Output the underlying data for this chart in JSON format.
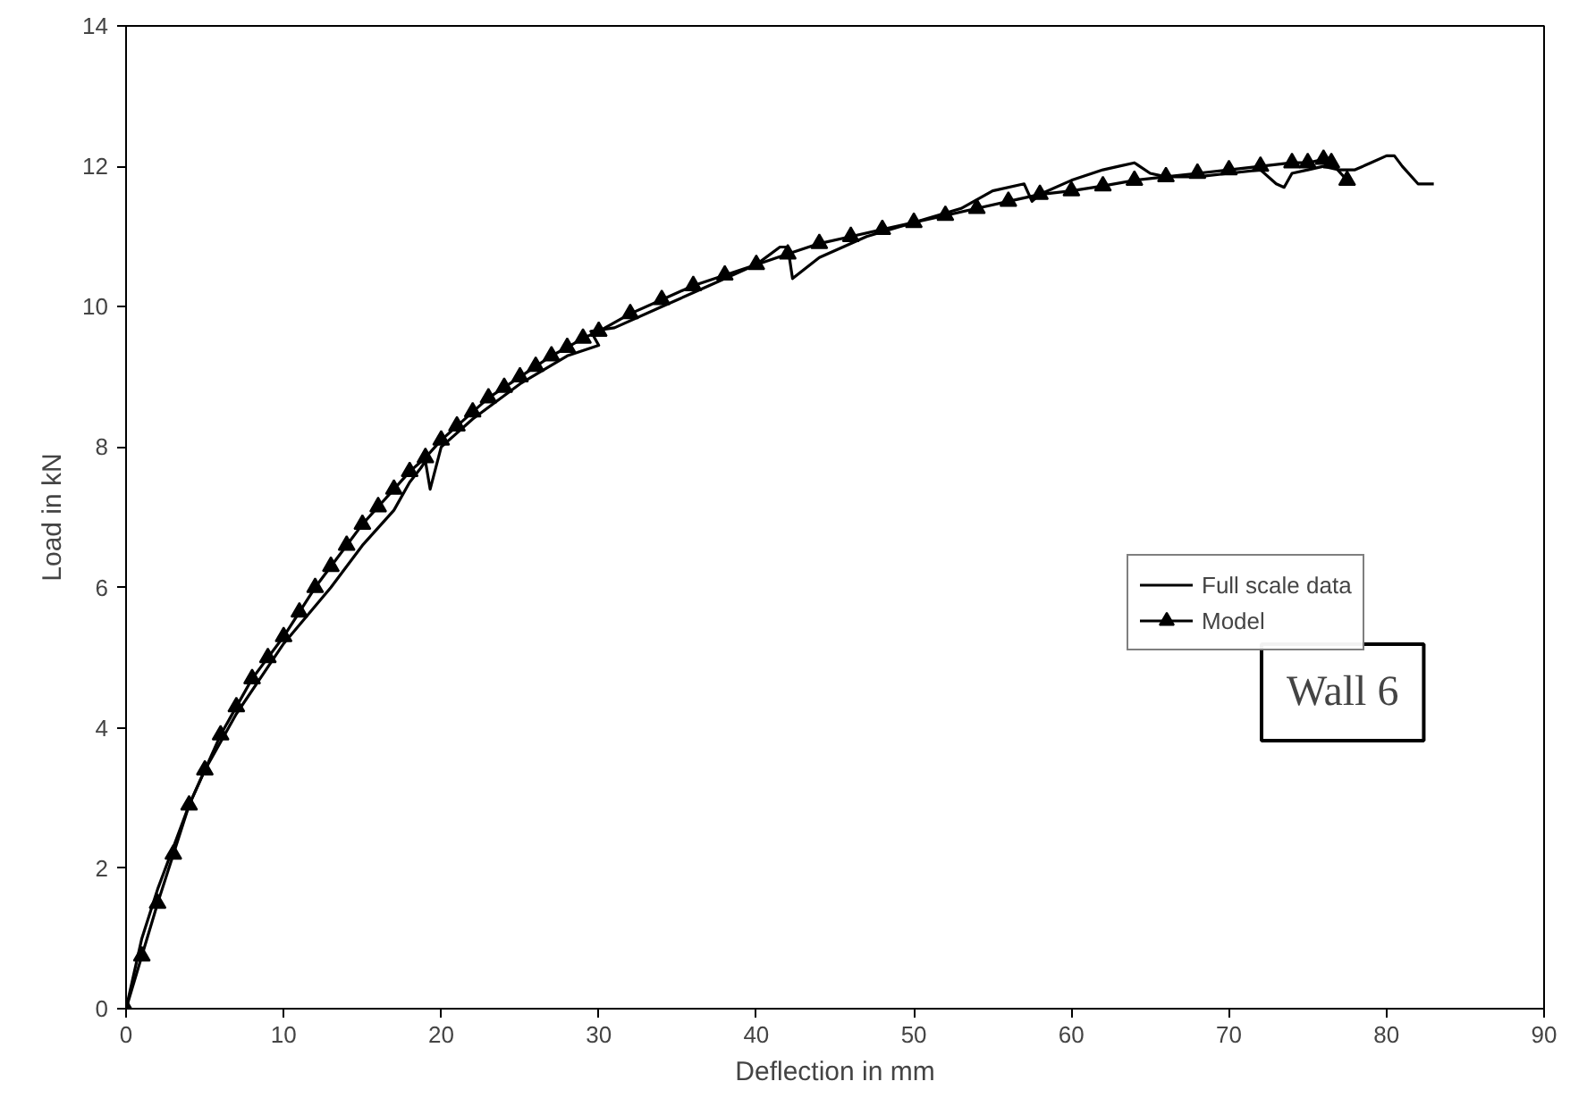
{
  "chart_data": {
    "type": "line",
    "xlabel": "Deflection in mm",
    "ylabel": "Load in kN",
    "xlim": [
      0,
      90
    ],
    "ylim": [
      0,
      14
    ],
    "xticks": [
      0,
      10,
      20,
      30,
      40,
      50,
      60,
      70,
      80,
      90
    ],
    "yticks": [
      0,
      2,
      4,
      6,
      8,
      10,
      12,
      14
    ],
    "grid": false,
    "legend": "right",
    "annotations": [
      "Wall 6"
    ],
    "series": [
      {
        "name": "Full scale data",
        "color": "#000000",
        "marker": "none",
        "x": [
          0,
          0.5,
          1,
          2,
          3,
          4,
          5,
          7,
          10,
          13,
          15,
          17,
          18,
          18.7,
          19,
          19.3,
          20,
          22,
          25,
          28,
          30,
          29.5,
          31,
          34,
          37,
          40,
          41.5,
          42,
          42.3,
          44,
          47,
          50,
          53,
          55,
          57,
          57.5,
          58,
          60,
          62,
          63,
          64,
          65,
          66,
          68,
          70,
          72,
          73,
          73.5,
          74,
          75,
          76,
          77,
          78,
          79,
          80,
          80.5,
          81,
          82,
          83
        ],
        "values": [
          0,
          0.5,
          1.0,
          1.7,
          2.3,
          2.9,
          3.4,
          4.2,
          5.2,
          6.0,
          6.6,
          7.1,
          7.5,
          7.7,
          7.8,
          7.4,
          8.0,
          8.4,
          8.9,
          9.3,
          9.45,
          9.65,
          9.7,
          10.0,
          10.3,
          10.6,
          10.85,
          10.85,
          10.4,
          10.7,
          11.0,
          11.2,
          11.4,
          11.65,
          11.75,
          11.5,
          11.6,
          11.8,
          11.95,
          12.0,
          12.05,
          11.9,
          11.85,
          11.85,
          11.9,
          11.95,
          11.75,
          11.7,
          11.9,
          11.95,
          12.0,
          11.95,
          11.95,
          12.05,
          12.15,
          12.15,
          12.0,
          11.75,
          11.75
        ]
      },
      {
        "name": "Model",
        "color": "#000000",
        "marker": "triangle",
        "x": [
          0,
          1,
          2,
          3,
          4,
          5,
          6,
          7,
          8,
          9,
          10,
          11,
          12,
          13,
          14,
          15,
          16,
          17,
          18,
          19,
          20,
          21,
          22,
          23,
          24,
          25,
          26,
          27,
          28,
          29,
          30,
          32,
          34,
          36,
          38,
          40,
          42,
          44,
          46,
          48,
          50,
          52,
          54,
          56,
          58,
          60,
          62,
          64,
          66,
          68,
          70,
          72,
          74,
          75,
          76,
          76.5,
          77.5
        ],
        "values": [
          0,
          0.75,
          1.5,
          2.2,
          2.9,
          3.4,
          3.9,
          4.3,
          4.7,
          5.0,
          5.3,
          5.65,
          6.0,
          6.3,
          6.6,
          6.9,
          7.15,
          7.4,
          7.65,
          7.85,
          8.1,
          8.3,
          8.5,
          8.7,
          8.85,
          9.0,
          9.15,
          9.3,
          9.42,
          9.55,
          9.65,
          9.9,
          10.1,
          10.3,
          10.45,
          10.6,
          10.75,
          10.9,
          11.0,
          11.1,
          11.2,
          11.3,
          11.4,
          11.5,
          11.6,
          11.65,
          11.72,
          11.8,
          11.85,
          11.9,
          11.95,
          12.0,
          12.05,
          12.05,
          12.1,
          12.05,
          11.8
        ]
      }
    ]
  }
}
